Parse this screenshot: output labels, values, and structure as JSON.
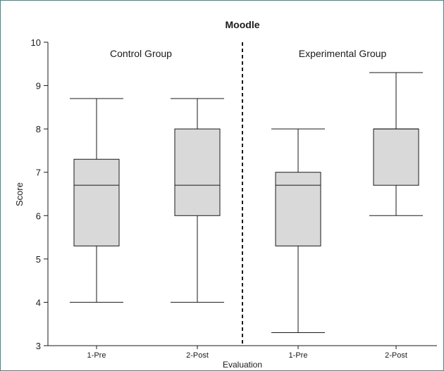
{
  "chart_data": {
    "type": "box",
    "title": "Moodle",
    "xlabel": "Evaluation",
    "ylabel": "Score",
    "ylim": [
      3,
      10
    ],
    "yticks": [
      3,
      4,
      5,
      6,
      7,
      8,
      9,
      10
    ],
    "groups": [
      {
        "name": "Control Group",
        "boxes": [
          {
            "label": "1-Pre",
            "whisker_low": 4.0,
            "q1": 5.3,
            "median": 6.7,
            "q3": 7.3,
            "whisker_high": 8.7
          },
          {
            "label": "2-Post",
            "whisker_low": 4.0,
            "q1": 6.0,
            "median": 6.7,
            "q3": 8.0,
            "whisker_high": 8.7
          }
        ]
      },
      {
        "name": "Experimental Group",
        "boxes": [
          {
            "label": "1-Pre",
            "whisker_low": 3.3,
            "q1": 5.3,
            "median": 6.7,
            "q3": 7.0,
            "whisker_high": 8.0
          },
          {
            "label": "2-Post",
            "whisker_low": 6.0,
            "q1": 6.7,
            "median": 8.0,
            "q3": 8.0,
            "whisker_high": 9.3
          }
        ]
      }
    ],
    "box_fill": "#d9d9d9",
    "line_color": "#1a1a1a",
    "frame_color": "#3d8c84",
    "grid": false
  }
}
